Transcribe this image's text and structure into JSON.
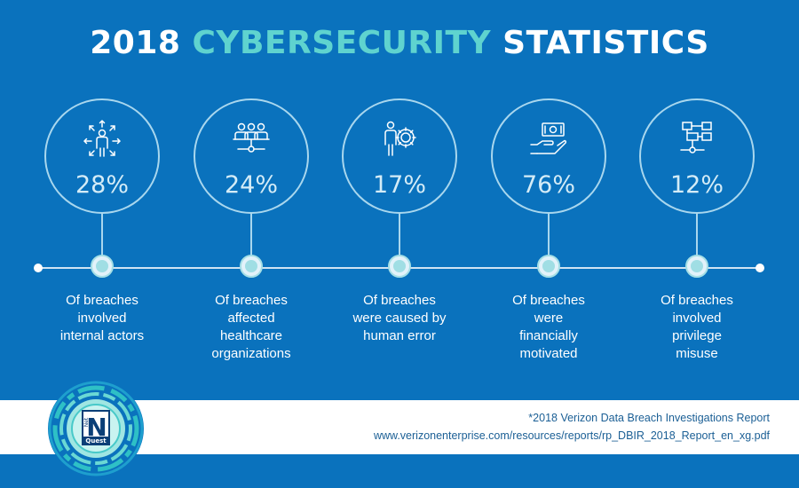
{
  "title": {
    "part1": "2018",
    "highlight": "CYBERSECURITY",
    "part2": "STATISTICS"
  },
  "stats": [
    {
      "icon": "person-arrows-icon",
      "value": "28%",
      "lines": [
        "Of breaches",
        "involved",
        "internal actors"
      ]
    },
    {
      "icon": "group-network-icon",
      "value": "24%",
      "lines": [
        "Of breaches",
        "affected",
        "healthcare",
        "organizations"
      ]
    },
    {
      "icon": "person-gear-icon",
      "value": "17%",
      "lines": [
        "Of breaches",
        "were caused by",
        "human error"
      ]
    },
    {
      "icon": "hand-money-icon",
      "value": "76%",
      "lines": [
        "Of breaches",
        "were",
        "financially",
        "motivated"
      ]
    },
    {
      "icon": "org-chart-icon",
      "value": "12%",
      "lines": [
        "Of breaches",
        "involved",
        "privilege",
        "misuse"
      ]
    }
  ],
  "source": {
    "line1": "*2018 Verizon Data Breach Investigations Report",
    "line2": "www.verizonenterprise.com/resources/reports/rp_DBIR_2018_Report_en_xg.pdf"
  },
  "logo": {
    "letter": "N",
    "small": "Net",
    "word": "Quest"
  },
  "colors": {
    "background": "#0a72bd",
    "accent": "#5fd3cf",
    "footer": "#ffffff",
    "source_text": "#1b5f95"
  }
}
